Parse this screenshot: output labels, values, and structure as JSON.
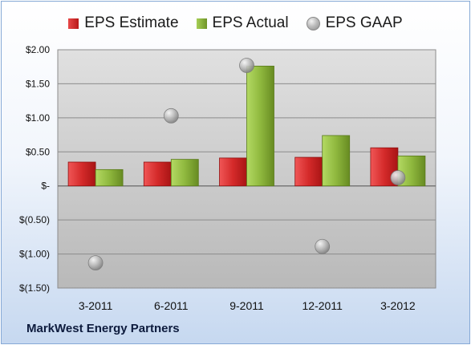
{
  "chart_data": {
    "type": "bar",
    "categories": [
      "3-2011",
      "6-2011",
      "9-2011",
      "12-2011",
      "3-2012"
    ],
    "series": [
      {
        "name": "EPS Estimate",
        "type": "bar",
        "color": "#d42a2a",
        "values": [
          0.35,
          0.35,
          0.41,
          0.42,
          0.56
        ]
      },
      {
        "name": "EPS Actual",
        "type": "bar",
        "color": "#8fb83e",
        "values": [
          0.24,
          0.39,
          1.76,
          0.74,
          0.44
        ]
      },
      {
        "name": "EPS GAAP",
        "type": "scatter",
        "color": "#b3b3b3",
        "values": [
          -1.13,
          1.03,
          1.77,
          -0.89,
          0.12
        ]
      }
    ],
    "ylim": [
      -1.5,
      2.0
    ],
    "yticks": [
      2.0,
      1.5,
      1.0,
      0.5,
      0,
      -0.5,
      -1.0,
      -1.5
    ],
    "ytick_labels": [
      "$2.00",
      "$1.50",
      "$1.00",
      "$0.50",
      "$-",
      "$(0.50)",
      "$(1.00)",
      "$(1.50)"
    ],
    "grid": true,
    "legend_position": "top"
  },
  "company_name": "MarkWest Energy Partners"
}
